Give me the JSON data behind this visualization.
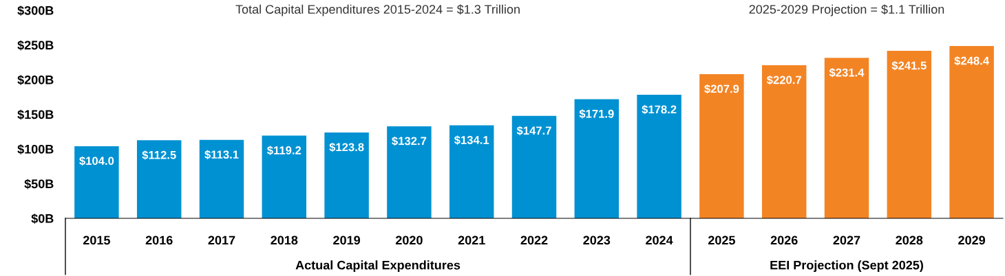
{
  "chart_data": {
    "type": "bar",
    "categories": [
      "2015",
      "2016",
      "2017",
      "2018",
      "2019",
      "2020",
      "2021",
      "2022",
      "2023",
      "2024",
      "2025",
      "2026",
      "2027",
      "2028",
      "2029"
    ],
    "values": [
      104.0,
      112.5,
      113.1,
      119.2,
      123.8,
      132.7,
      134.1,
      147.7,
      171.9,
      178.2,
      207.9,
      220.7,
      231.4,
      241.5,
      248.4
    ],
    "colors": [
      "#0091d2",
      "#0091d2",
      "#0091d2",
      "#0091d2",
      "#0091d2",
      "#0091d2",
      "#0091d2",
      "#0091d2",
      "#0091d2",
      "#0091d2",
      "#f38424",
      "#f38424",
      "#f38424",
      "#f38424",
      "#f38424"
    ],
    "value_labels": [
      "$104.0",
      "$112.5",
      "$113.1",
      "$119.2",
      "$123.8",
      "$132.7",
      "$134.1",
      "$147.7",
      "$171.9",
      "$178.2",
      "$207.9",
      "$220.7",
      "$231.4",
      "$241.5",
      "$248.4"
    ],
    "ylim": [
      0,
      300
    ],
    "yticks": [
      {
        "value": 0,
        "label": "$0B"
      },
      {
        "value": 50,
        "label": "$50B"
      },
      {
        "value": 100,
        "label": "$100B"
      },
      {
        "value": 150,
        "label": "$150B"
      },
      {
        "value": 200,
        "label": "$200B"
      },
      {
        "value": 250,
        "label": "$250B"
      },
      {
        "value": 300,
        "label": "$300B"
      }
    ],
    "annotations": [
      "Total Capital Expenditures 2015-2024 = $1.3 Trillion",
      "2025-2029 Projection = $1.1 Trillion",
      "Actual Capital Expenditures",
      "EEI Projection (Sept 2025)"
    ],
    "grid": false,
    "legend": false
  }
}
